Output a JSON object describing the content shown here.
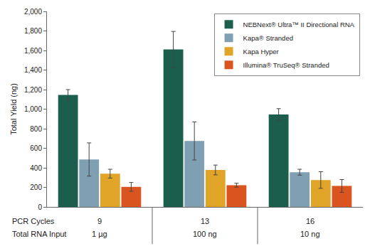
{
  "chart_data": {
    "type": "bar",
    "y_label": "Total Yield (ng)",
    "category_row_labels": [
      "PCR Cycles",
      "Total RNA Input"
    ],
    "categories": [
      [
        "9",
        "1 µg"
      ],
      [
        "13",
        "100 ng"
      ],
      [
        "16",
        "10 ng"
      ]
    ],
    "series": [
      {
        "name": "NEBNext® Ultra™ II Directional RNA",
        "color": "#1b5e4c",
        "values": [
          1145,
          1610,
          945
        ],
        "errors": [
          55,
          185,
          60
        ]
      },
      {
        "name": "Kapa® Stranded",
        "color": "#7f9fb3",
        "values": [
          485,
          675,
          355
        ],
        "errors": [
          170,
          195,
          30
        ]
      },
      {
        "name": "Kapa Hyper",
        "color": "#e0a528",
        "values": [
          340,
          378,
          275
        ],
        "errors": [
          45,
          50,
          85
        ]
      },
      {
        "name": "Illumina® TruSeq® Stranded",
        "color": "#d9541f",
        "values": [
          205,
          222,
          215
        ],
        "errors": [
          45,
          20,
          65
        ]
      }
    ],
    "ylim": [
      0,
      2000
    ],
    "yticks": [
      0,
      200,
      400,
      600,
      800,
      {
        "value": 1000,
        "label": "1,000"
      },
      {
        "value": 1200,
        "label": "1,200"
      },
      {
        "value": 1400,
        "label": "1,400"
      },
      {
        "value": 1600,
        "label": "1,600"
      },
      {
        "value": 1800,
        "label": "1,800"
      },
      {
        "value": 2000,
        "label": "2,000"
      }
    ],
    "grid": false,
    "legend": "top-right"
  }
}
